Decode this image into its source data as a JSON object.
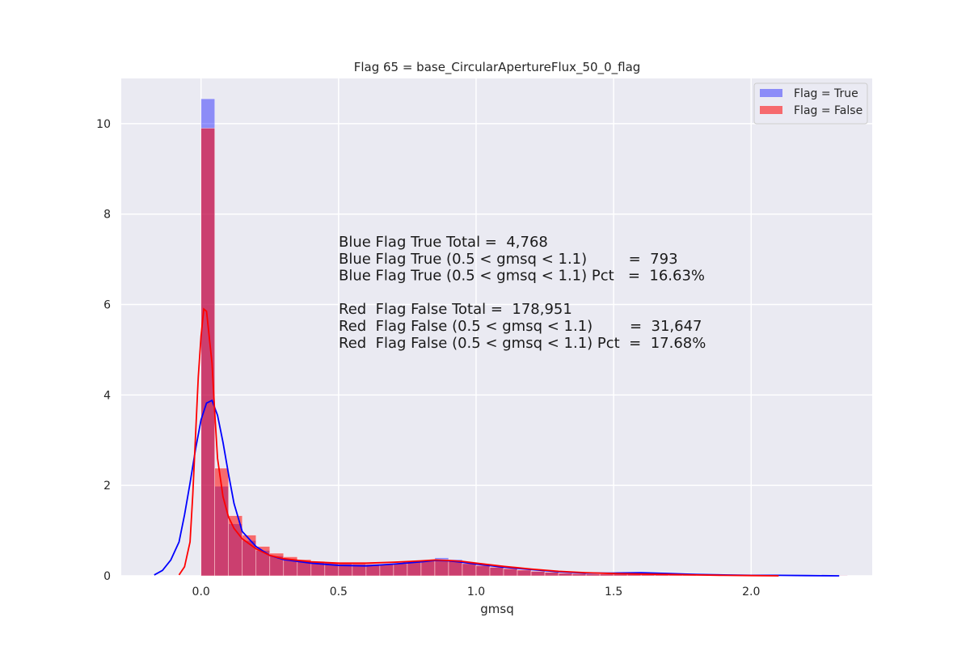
{
  "chart_data": {
    "type": "bar",
    "title": "Flag 65 = base_CircularApertureFlux_50_0_flag",
    "xlabel": "gmsq",
    "ylabel": "",
    "xlim": [
      -0.29,
      2.44
    ],
    "ylim": [
      0,
      11.0
    ],
    "xticks": [
      0.0,
      0.5,
      1.0,
      1.5,
      2.0
    ],
    "xtick_labels": [
      "0.0",
      "0.5",
      "1.0",
      "1.5",
      "2.0"
    ],
    "yticks": [
      0,
      2,
      4,
      6,
      8,
      10
    ],
    "ytick_labels": [
      "0",
      "2",
      "4",
      "6",
      "8",
      "10"
    ],
    "grid": true,
    "legend_position": "top-right",
    "bin_start": 0.0,
    "bin_width": 0.05,
    "series": [
      {
        "name": "Flag = True",
        "color": "#0000ff",
        "hist": [
          10.55,
          1.98,
          1.15,
          0.78,
          0.56,
          0.44,
          0.37,
          0.33,
          0.3,
          0.28,
          0.26,
          0.25,
          0.24,
          0.25,
          0.27,
          0.31,
          0.35,
          0.4,
          0.36,
          0.28,
          0.22,
          0.19,
          0.15,
          0.12,
          0.1,
          0.08,
          0.06,
          0.05,
          0.05,
          0.05,
          0.05,
          0.06,
          0.06,
          0.05,
          0.04,
          0.03,
          0.02,
          0.02,
          0.01,
          0.01,
          0.01,
          0.01,
          0.01,
          0.01,
          0.01,
          0.01,
          0.01
        ],
        "kde_x": [
          -0.17,
          -0.14,
          -0.11,
          -0.08,
          -0.06,
          -0.04,
          -0.02,
          0.0,
          0.02,
          0.04,
          0.06,
          0.08,
          0.1,
          0.12,
          0.15,
          0.2,
          0.25,
          0.3,
          0.4,
          0.5,
          0.6,
          0.7,
          0.8,
          0.85,
          0.9,
          0.95,
          1.0,
          1.1,
          1.2,
          1.3,
          1.4,
          1.5,
          1.6,
          1.7,
          1.8,
          1.9,
          2.0,
          2.1,
          2.2,
          2.32
        ],
        "kde_y": [
          0.02,
          0.12,
          0.35,
          0.75,
          1.35,
          2.05,
          2.8,
          3.45,
          3.82,
          3.88,
          3.55,
          2.95,
          2.25,
          1.6,
          0.98,
          0.65,
          0.45,
          0.36,
          0.28,
          0.23,
          0.22,
          0.26,
          0.31,
          0.34,
          0.33,
          0.3,
          0.26,
          0.19,
          0.14,
          0.09,
          0.06,
          0.06,
          0.07,
          0.05,
          0.03,
          0.02,
          0.01,
          0.01,
          0.005,
          0.0
        ]
      },
      {
        "name": "Flag = False",
        "color": "#ff0000",
        "hist": [
          9.9,
          2.38,
          1.33,
          0.9,
          0.65,
          0.5,
          0.42,
          0.36,
          0.32,
          0.3,
          0.28,
          0.27,
          0.26,
          0.26,
          0.27,
          0.3,
          0.34,
          0.36,
          0.33,
          0.27,
          0.23,
          0.19,
          0.16,
          0.13,
          0.1,
          0.08,
          0.06,
          0.05,
          0.04,
          0.04,
          0.04,
          0.04,
          0.03,
          0.03,
          0.02,
          0.02,
          0.01,
          0.01,
          0.01,
          0.01,
          0.01,
          0.01,
          0.005,
          0.005,
          0.005,
          0.005,
          0.005
        ],
        "kde_x": [
          -0.08,
          -0.06,
          -0.04,
          -0.03,
          -0.02,
          -0.01,
          0.0,
          0.01,
          0.02,
          0.04,
          0.05,
          0.06,
          0.08,
          0.1,
          0.12,
          0.15,
          0.2,
          0.25,
          0.3,
          0.4,
          0.5,
          0.6,
          0.7,
          0.8,
          0.85,
          0.9,
          0.95,
          1.0,
          1.1,
          1.2,
          1.3,
          1.4,
          1.5,
          1.6,
          1.7,
          1.8,
          1.9,
          2.0,
          2.1
        ],
        "kde_y": [
          0.02,
          0.2,
          0.75,
          1.8,
          3.1,
          4.4,
          5.3,
          5.9,
          5.85,
          4.7,
          3.6,
          2.6,
          1.75,
          1.3,
          1.05,
          0.82,
          0.6,
          0.45,
          0.38,
          0.31,
          0.28,
          0.28,
          0.3,
          0.33,
          0.35,
          0.34,
          0.32,
          0.28,
          0.21,
          0.15,
          0.1,
          0.07,
          0.05,
          0.04,
          0.03,
          0.02,
          0.01,
          0.005,
          0.0
        ]
      }
    ],
    "annotations": [
      "Blue Flag True Total =  4,768",
      "Blue Flag True (0.5 < gmsq < 1.1)         =  793",
      "Blue Flag True (0.5 < gmsq < 1.1) Pct   =  16.63%",
      "",
      "Red  Flag False Total =  178,951",
      "Red  Flag False (0.5 < gmsq < 1.1)        =  31,647",
      "Red  Flag False (0.5 < gmsq < 1.1) Pct  =  17.68%"
    ]
  }
}
